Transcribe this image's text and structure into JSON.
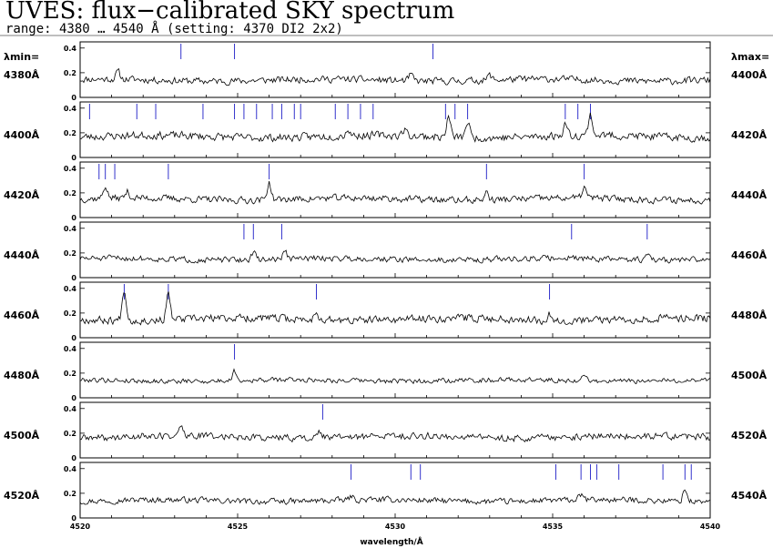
{
  "header": {
    "title": "UVES: flux−calibrated SKY spectrum",
    "subtitle": "range: 4380 … 4540 Å (setting: 4370 DI2 2x2)",
    "lambda_min_label": "λmin=",
    "lambda_max_label": "λmax="
  },
  "colors": {
    "spectrum": "#000000",
    "markers": "#3333cc",
    "background": "#ffffff"
  },
  "chart_data": {
    "type": "line",
    "title": "UVES: flux−calibrated SKY spectrum",
    "xlabel": "wavelength/Å",
    "ylabel": "",
    "ylim": [
      0,
      0.45
    ],
    "y_ticks": [
      "0",
      "0.2",
      "0.4"
    ],
    "bottom_x_ticks": [
      "4520",
      "4525",
      "4530",
      "4535",
      "4540"
    ],
    "panels": [
      {
        "min_label": "4380Å",
        "max_label": "4400Å",
        "range": [
          4380,
          4400
        ],
        "base": 0.14,
        "amp": 0.035,
        "seed": 11,
        "peaks": [
          [
            4381.2,
            0.06
          ],
          [
            4390.5,
            0.05
          ],
          [
            4393.0,
            0.04
          ]
        ],
        "markers": [
          4383.2,
          4384.9,
          4391.2
        ]
      },
      {
        "min_label": "4400Å",
        "max_label": "4420Å",
        "range": [
          4400,
          4420
        ],
        "base": 0.17,
        "amp": 0.04,
        "seed": 23,
        "peaks": [
          [
            4411.7,
            0.16
          ],
          [
            4412.3,
            0.13
          ],
          [
            4415.4,
            0.1
          ],
          [
            4416.2,
            0.17
          ],
          [
            4410.3,
            0.05
          ],
          [
            4408.5,
            0.05
          ]
        ],
        "markers": [
          4400.3,
          4401.8,
          4402.4,
          4403.9,
          4404.9,
          4405.2,
          4405.6,
          4406.1,
          4406.4,
          4406.8,
          4407.0,
          4408.1,
          4408.5,
          4408.9,
          4409.3,
          4411.6,
          4411.9,
          4412.3,
          4415.4,
          4415.8,
          4416.2
        ]
      },
      {
        "min_label": "4420Å",
        "max_label": "4440Å",
        "range": [
          4420,
          4440
        ],
        "base": 0.15,
        "amp": 0.035,
        "seed": 37,
        "peaks": [
          [
            4420.8,
            0.1
          ],
          [
            4426.0,
            0.14
          ],
          [
            4432.9,
            0.06
          ],
          [
            4436.0,
            0.09
          ],
          [
            4421.5,
            0.05
          ]
        ],
        "markers": [
          4420.6,
          4420.8,
          4421.1,
          4422.8,
          4426.0,
          4432.9,
          4436.0
        ]
      },
      {
        "min_label": "4440Å",
        "max_label": "4460Å",
        "range": [
          4440,
          4460
        ],
        "base": 0.15,
        "amp": 0.03,
        "seed": 51,
        "peaks": [
          [
            4445.5,
            0.06
          ],
          [
            4446.5,
            0.06
          ],
          [
            4458.0,
            0.06
          ],
          [
            4455.6,
            0.03
          ]
        ],
        "markers": [
          4445.2,
          4445.5,
          4446.4,
          4455.6,
          4458.0
        ]
      },
      {
        "min_label": "4460Å",
        "max_label": "4480Å",
        "range": [
          4460,
          4480
        ],
        "base": 0.15,
        "amp": 0.04,
        "seed": 67,
        "peaks": [
          [
            4461.4,
            0.26
          ],
          [
            4462.8,
            0.2
          ],
          [
            4467.5,
            0.07
          ],
          [
            4474.9,
            0.05
          ]
        ],
        "markers": [
          4461.4,
          4462.8,
          4467.5,
          4474.9
        ]
      },
      {
        "min_label": "4480Å",
        "max_label": "4500Å",
        "range": [
          4480,
          4500
        ],
        "base": 0.14,
        "amp": 0.025,
        "seed": 79,
        "peaks": [
          [
            4484.9,
            0.08
          ],
          [
            4496.0,
            0.05
          ],
          [
            4491.5,
            0.03
          ]
        ],
        "markers": [
          4484.9
        ]
      },
      {
        "min_label": "4500Å",
        "max_label": "4520Å",
        "range": [
          4500,
          4520
        ],
        "base": 0.17,
        "amp": 0.035,
        "seed": 89,
        "peaks": [
          [
            4503.2,
            0.08
          ],
          [
            4507.6,
            0.06
          ],
          [
            4502.0,
            0.03
          ]
        ],
        "markers": [
          4507.7
        ]
      },
      {
        "min_label": "4520Å",
        "max_label": "4540Å",
        "range": [
          4520,
          4540
        ],
        "base": 0.14,
        "amp": 0.03,
        "seed": 97,
        "peaks": [
          [
            4539.2,
            0.1
          ],
          [
            4535.9,
            0.04
          ],
          [
            4528.6,
            0.03
          ]
        ],
        "markers": [
          4528.6,
          4530.5,
          4530.8,
          4535.1,
          4535.9,
          4536.2,
          4536.4,
          4537.1,
          4538.5,
          4539.2,
          4539.4
        ]
      }
    ]
  }
}
